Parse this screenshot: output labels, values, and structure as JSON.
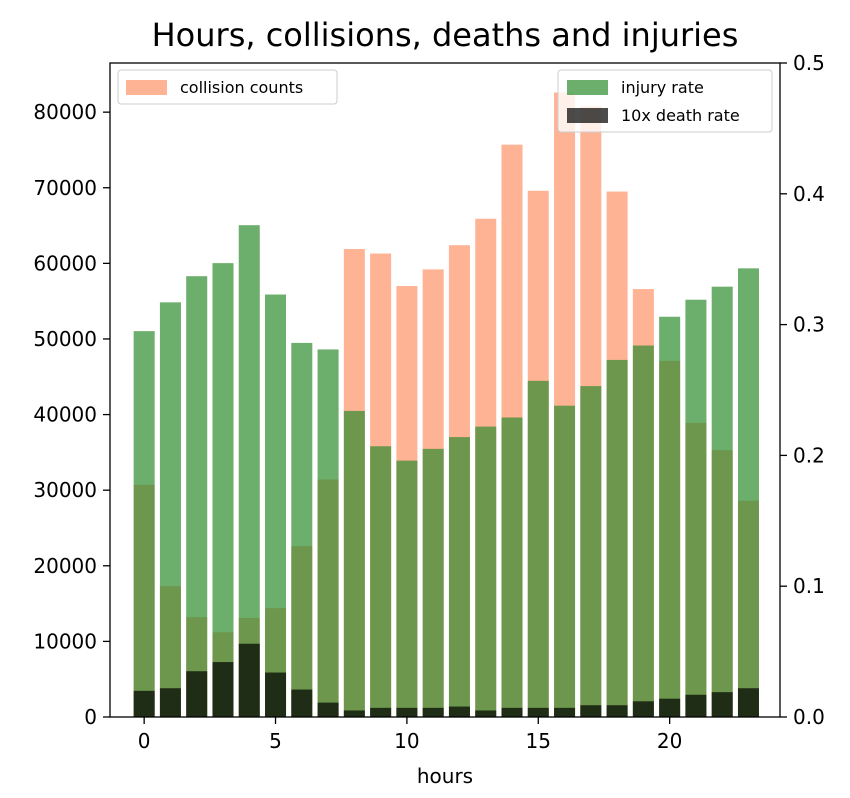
{
  "chart_data": {
    "type": "bar",
    "title": "Hours, collisions, deaths and injuries",
    "xlabel": "hours",
    "ylabel": "",
    "x": [
      0,
      1,
      2,
      3,
      4,
      5,
      6,
      7,
      8,
      9,
      10,
      11,
      12,
      13,
      14,
      15,
      16,
      17,
      18,
      19,
      20,
      21,
      22,
      23
    ],
    "xlim": [
      -1.3,
      24.2
    ],
    "xticks": [
      0,
      5,
      10,
      15,
      20
    ],
    "y_left": {
      "lim": [
        0,
        86500
      ],
      "ticks": [
        0,
        10000,
        20000,
        30000,
        40000,
        50000,
        60000,
        70000,
        80000
      ]
    },
    "y_right": {
      "lim": [
        0,
        0.5
      ],
      "ticks": [
        "0.0",
        "0.1",
        "0.2",
        "0.3",
        "0.4",
        "0.5"
      ]
    },
    "series": [
      {
        "name": "collision counts",
        "axis": "left",
        "color": "#FFA07A",
        "values": [
          30700,
          17300,
          13200,
          11200,
          13100,
          14400,
          22600,
          31400,
          61900,
          61300,
          57000,
          59200,
          62400,
          65900,
          75700,
          69600,
          82600,
          80800,
          69500,
          56600,
          47100,
          38900,
          35300,
          28600
        ]
      },
      {
        "name": "injury rate",
        "axis": "right",
        "color": "#2E8B2E",
        "values": [
          0.295,
          0.317,
          0.337,
          0.347,
          0.376,
          0.323,
          0.286,
          0.281,
          0.234,
          0.207,
          0.196,
          0.205,
          0.214,
          0.222,
          0.229,
          0.257,
          0.238,
          0.253,
          0.273,
          0.284,
          0.306,
          0.319,
          0.329,
          0.343
        ]
      },
      {
        "name": "10x death rate",
        "axis": "right",
        "color": "#000000",
        "values": [
          0.02,
          0.022,
          0.035,
          0.042,
          0.056,
          0.034,
          0.021,
          0.011,
          0.005,
          0.007,
          0.007,
          0.007,
          0.008,
          0.005,
          0.007,
          0.007,
          0.007,
          0.009,
          0.009,
          0.012,
          0.014,
          0.017,
          0.019,
          0.022
        ]
      }
    ],
    "legend": [
      {
        "position": "top-left",
        "entries": [
          "collision counts"
        ]
      },
      {
        "position": "top-right",
        "entries": [
          "injury rate",
          "10x death rate"
        ]
      }
    ]
  }
}
